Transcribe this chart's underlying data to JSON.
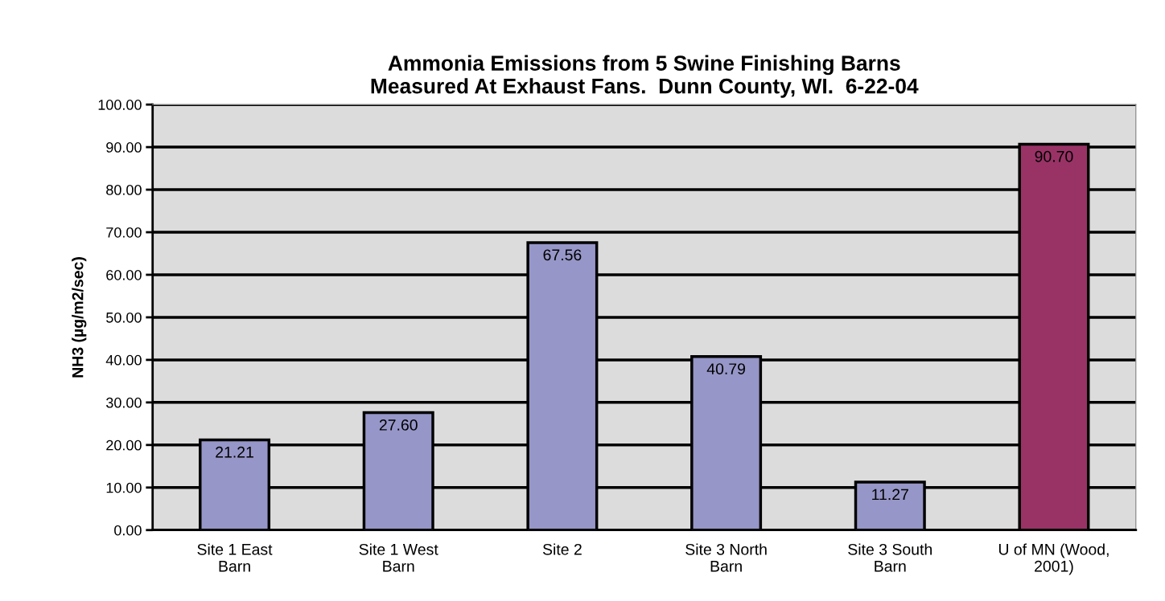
{
  "chart_data": {
    "type": "bar",
    "title": "Ammonia Emissions from 5 Swine Finishing Barns\nMeasured At Exhaust Fans.  Dunn County, WI.  6-22-04",
    "ylabel": "NH3 (µg/m2/sec)",
    "categories": [
      "Site 1 East\nBarn",
      "Site 1 West\nBarn",
      "Site 2",
      "Site 3 North\nBarn",
      "Site 3 South\nBarn",
      "U of MN (Wood,\n2001)"
    ],
    "values": [
      21.21,
      27.6,
      67.56,
      40.79,
      11.27,
      90.7
    ],
    "value_labels": [
      "21.21",
      "27.60",
      "67.56",
      "40.79",
      "11.27",
      "90.70"
    ],
    "colors": [
      "#9696c8",
      "#9696c8",
      "#9696c8",
      "#9696c8",
      "#9696c8",
      "#993366"
    ],
    "ylim": [
      0,
      100
    ],
    "yticks": [
      {
        "value": 0,
        "label": "0.00"
      },
      {
        "value": 10,
        "label": "10.00"
      },
      {
        "value": 20,
        "label": "20.00"
      },
      {
        "value": 30,
        "label": "30.00"
      },
      {
        "value": 40,
        "label": "40.00"
      },
      {
        "value": 50,
        "label": "50.00"
      },
      {
        "value": 60,
        "label": "60.00"
      },
      {
        "value": 70,
        "label": "70.00"
      },
      {
        "value": 80,
        "label": "80.00"
      },
      {
        "value": 90,
        "label": "90.00"
      },
      {
        "value": 100,
        "label": "100.00"
      }
    ],
    "grid": "y"
  }
}
